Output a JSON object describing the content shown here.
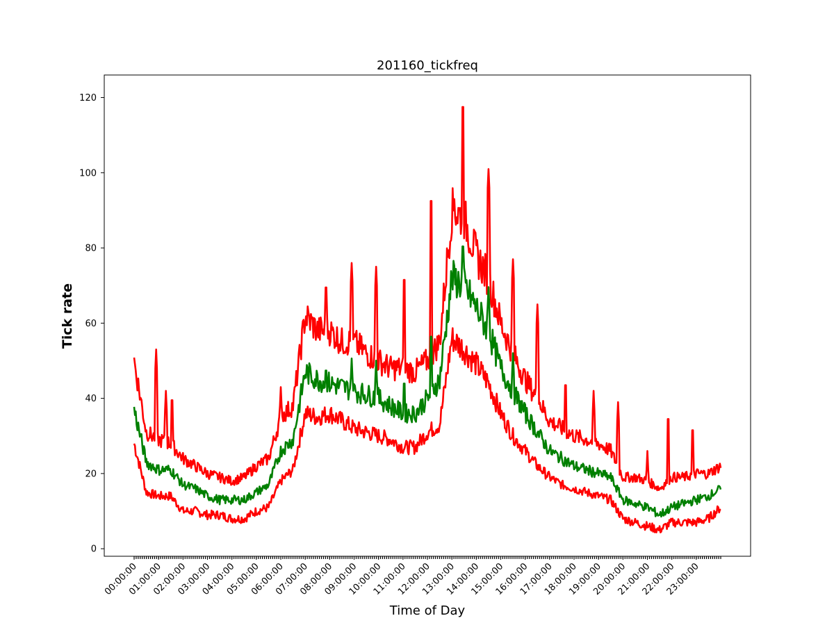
{
  "chart_data": {
    "type": "line",
    "title": "201160_tickfreq",
    "xlabel": "Time of Day",
    "ylabel": "Tick rate",
    "x_ticks": [
      "00:00:00",
      "01:00:00",
      "02:00:00",
      "03:00:00",
      "04:00:00",
      "05:00:00",
      "06:00:00",
      "07:00:00",
      "08:00:00",
      "09:00:00",
      "10:00:00",
      "11:00:00",
      "12:00:00",
      "13:00:00",
      "14:00:00",
      "15:00:00",
      "16:00:00",
      "17:00:00",
      "18:00:00",
      "19:00:00",
      "20:00:00",
      "21:00:00",
      "22:00:00",
      "23:00:00"
    ],
    "y_ticks": [
      0,
      20,
      40,
      60,
      80,
      100,
      120
    ],
    "ylim": [
      -2,
      126
    ],
    "grid": false,
    "hours": [
      0,
      0.5,
      1,
      1.5,
      2,
      2.5,
      3,
      3.5,
      4,
      4.5,
      5,
      5.5,
      6,
      6.5,
      7,
      7.5,
      8,
      8.5,
      9,
      9.5,
      10,
      10.5,
      11,
      11.5,
      12,
      12.5,
      13,
      13.5,
      14,
      14.5,
      15,
      15.5,
      16,
      16.5,
      17,
      17.5,
      18,
      18.5,
      19,
      19.5,
      20,
      20.5,
      21,
      21.5,
      22,
      22.5,
      23,
      23.5,
      24
    ],
    "series": [
      {
        "color": "#ff0000",
        "values": [
          50,
          31,
          29,
          28,
          24,
          22,
          20,
          19,
          18,
          19,
          22,
          24,
          35,
          38,
          62,
          58,
          58,
          55,
          55,
          52,
          50,
          48,
          48,
          47,
          50,
          55,
          90,
          88,
          78,
          72,
          60,
          52,
          45,
          40,
          34,
          32,
          30,
          29,
          28,
          26,
          19,
          19,
          18,
          16,
          19,
          19,
          20,
          20,
          22
        ]
      },
      {
        "color": "#008000",
        "values": [
          37,
          23,
          21,
          21,
          17,
          16,
          14,
          13,
          13,
          13,
          15,
          17,
          26,
          29,
          47,
          45,
          44,
          43,
          42,
          41,
          40,
          38,
          36,
          36,
          40,
          45,
          72,
          70,
          64,
          58,
          48,
          42,
          36,
          31,
          26,
          24,
          22,
          21,
          20,
          19,
          13,
          12,
          11,
          9,
          11,
          12,
          13,
          14,
          16
        ]
      },
      {
        "color": "#ff0000",
        "values": [
          28,
          15,
          14,
          14,
          10,
          10,
          9,
          9,
          8,
          8,
          10,
          11,
          18,
          21,
          36,
          35,
          36,
          34,
          32,
          31,
          30,
          29,
          27,
          27,
          31,
          33,
          56,
          53,
          49,
          44,
          36,
          30,
          26,
          22,
          19,
          17,
          16,
          15,
          14,
          13,
          8,
          7,
          6,
          5,
          7,
          7,
          7,
          8,
          11
        ]
      }
    ],
    "spikes": [
      {
        "series": 0,
        "hour": 0.04,
        "value": 50
      },
      {
        "series": 0,
        "hour": 0.9,
        "value": 53
      },
      {
        "series": 0,
        "hour": 1.3,
        "value": 42
      },
      {
        "series": 0,
        "hour": 1.55,
        "value": 42
      },
      {
        "series": 0,
        "hour": 6.0,
        "value": 43
      },
      {
        "series": 0,
        "hour": 7.85,
        "value": 72
      },
      {
        "series": 0,
        "hour": 8.9,
        "value": 76
      },
      {
        "series": 0,
        "hour": 9.9,
        "value": 75
      },
      {
        "series": 0,
        "hour": 11.05,
        "value": 74
      },
      {
        "series": 0,
        "hour": 12.15,
        "value": 95
      },
      {
        "series": 0,
        "hour": 13.1,
        "value": 93
      },
      {
        "series": 0,
        "hour": 13.45,
        "value": 120
      },
      {
        "series": 0,
        "hour": 14.5,
        "value": 101
      },
      {
        "series": 0,
        "hour": 15.5,
        "value": 77
      },
      {
        "series": 0,
        "hour": 16.5,
        "value": 65
      },
      {
        "series": 0,
        "hour": 17.65,
        "value": 46
      },
      {
        "series": 0,
        "hour": 18.8,
        "value": 42
      },
      {
        "series": 0,
        "hour": 19.8,
        "value": 39
      },
      {
        "series": 0,
        "hour": 21.0,
        "value": 26
      },
      {
        "series": 0,
        "hour": 21.85,
        "value": 37
      },
      {
        "series": 0,
        "hour": 22.85,
        "value": 34
      }
    ]
  }
}
